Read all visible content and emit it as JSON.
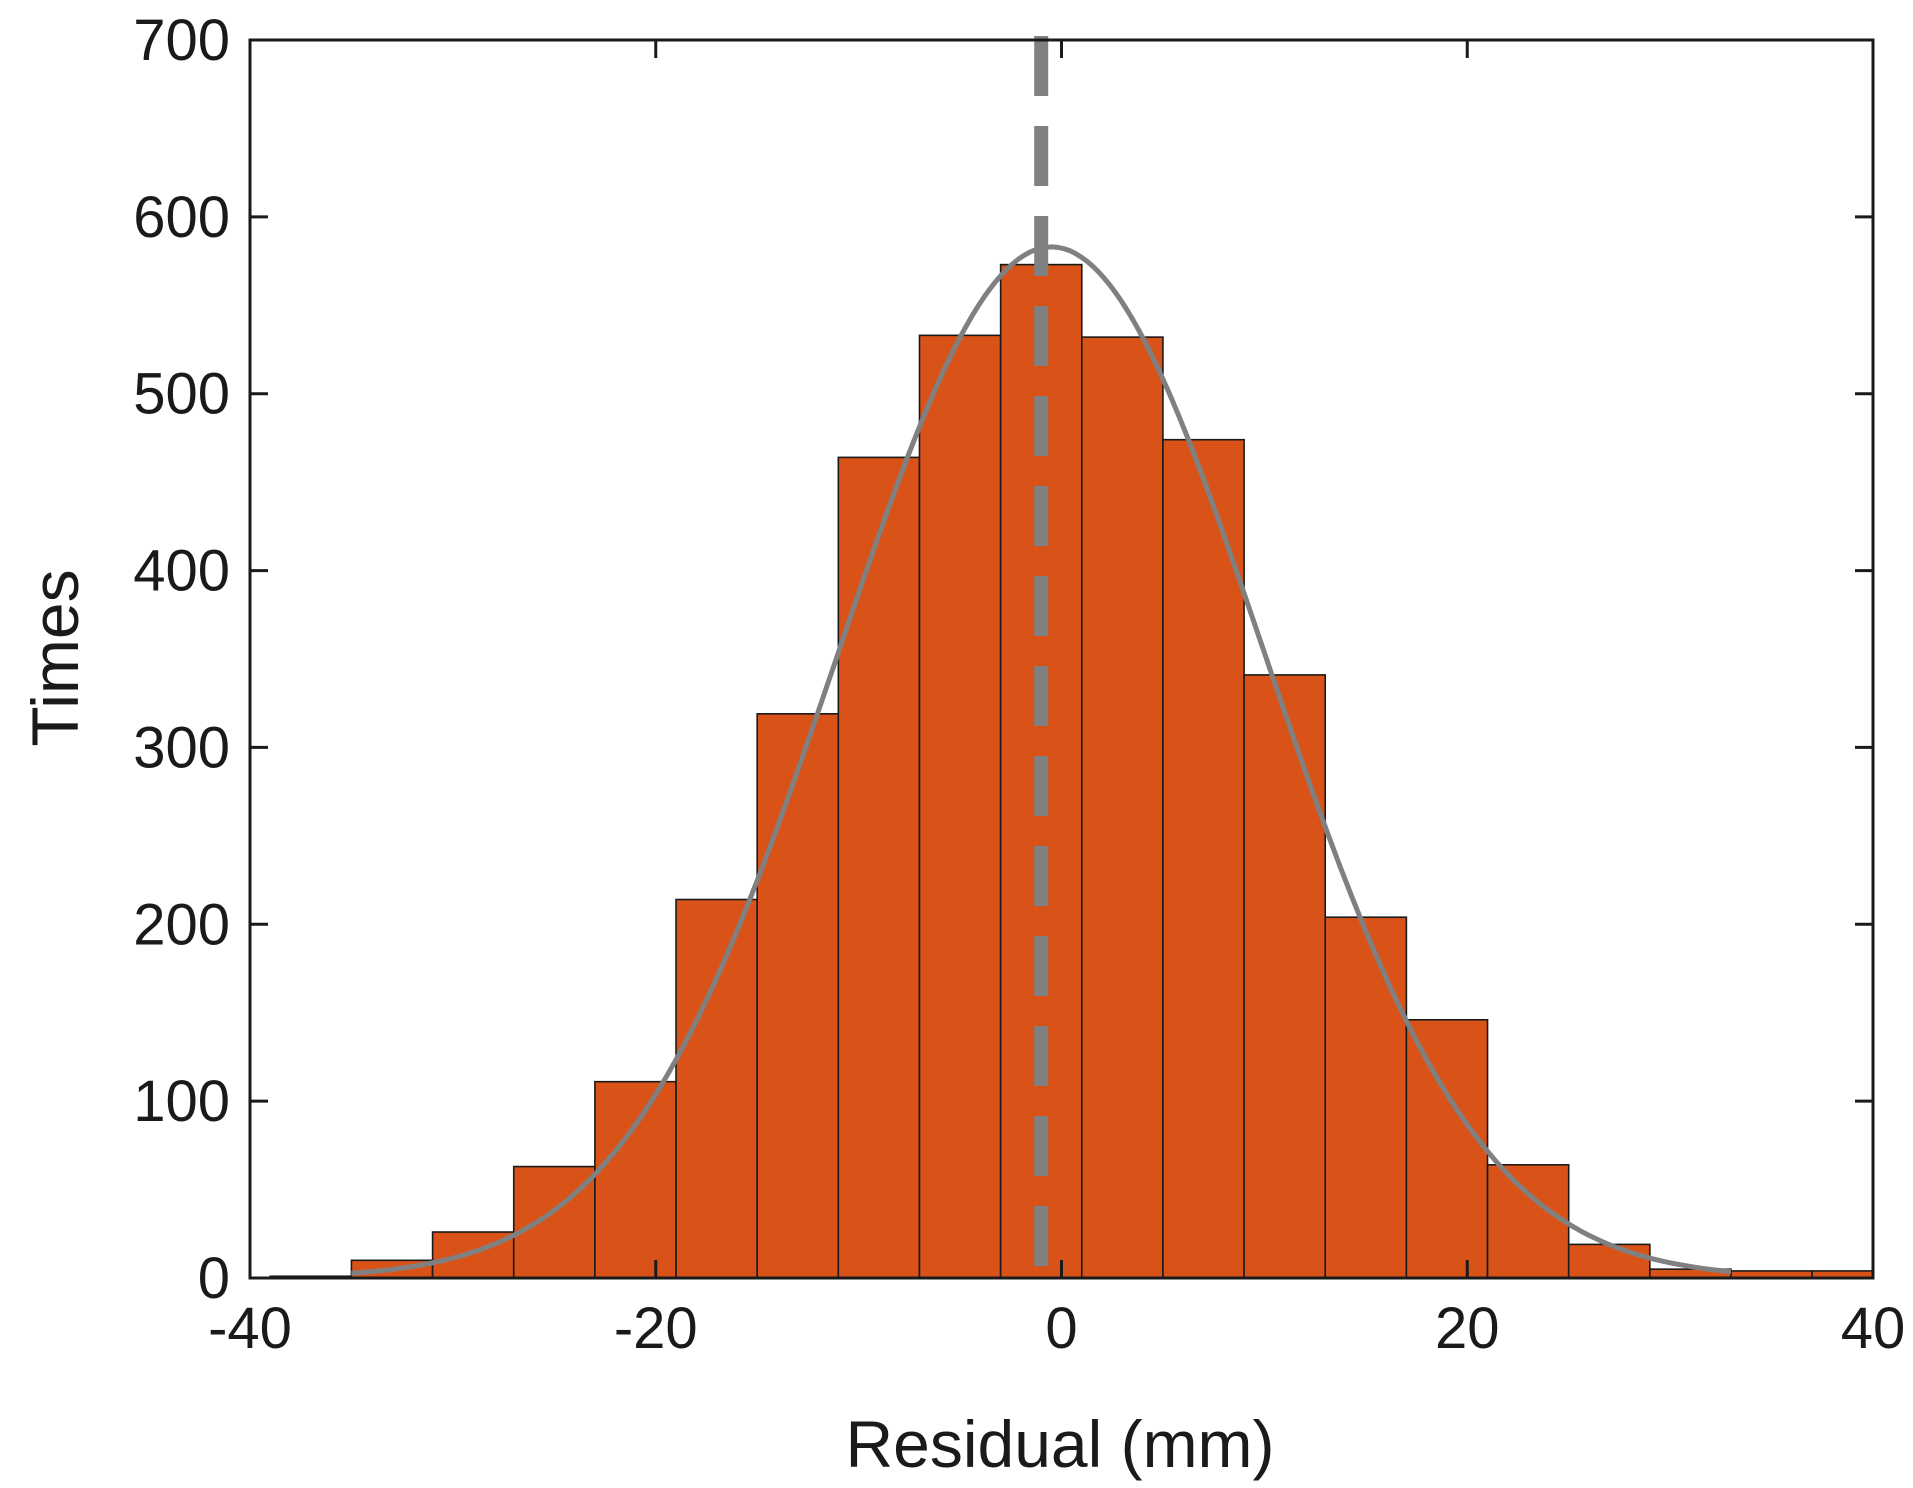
{
  "chart_data": {
    "type": "bar",
    "subtype": "histogram",
    "title": "",
    "xlabel": "Residual (mm)",
    "ylabel": "Times",
    "xlim": [
      -40,
      40
    ],
    "ylim": [
      0,
      700
    ],
    "xticks": [
      -40,
      -20,
      0,
      20,
      40
    ],
    "yticks": [
      0,
      100,
      200,
      300,
      400,
      500,
      600,
      700
    ],
    "grid": false,
    "bin_width": 4,
    "bin_edges": [
      -39,
      -35,
      -31,
      -27,
      -23,
      -19,
      -15,
      -11,
      -7,
      -3,
      1,
      5,
      9,
      13,
      17,
      21,
      25,
      29,
      33,
      37,
      40
    ],
    "counts": [
      1,
      10,
      26,
      63,
      111,
      214,
      319,
      464,
      533,
      573,
      532,
      474,
      341,
      204,
      146,
      64,
      19,
      5,
      4,
      4
    ],
    "bar_color": "#d95319",
    "bar_edge_color": "#1a1a1a",
    "fit_curve": {
      "type": "normal",
      "mean": -0.5,
      "std": 10.5,
      "peak": 583,
      "x_range": [
        -35,
        33
      ],
      "color": "#808080"
    },
    "reference_line": {
      "style": "dashed",
      "x": -1,
      "color": "#808080"
    }
  }
}
